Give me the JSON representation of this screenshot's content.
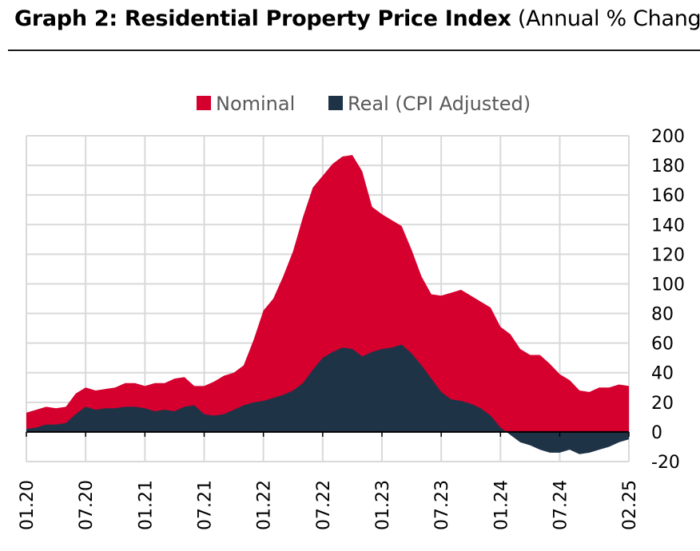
{
  "chart_data": {
    "type": "area",
    "title_bold": "Graph 2: Residential Property Price Index",
    "title_normal": "(Annual % Change)",
    "xlabel": "",
    "ylabel": "",
    "ylim": [
      -20,
      200
    ],
    "yticks": [
      200,
      180,
      160,
      140,
      120,
      100,
      80,
      60,
      40,
      20,
      0,
      -20
    ],
    "xtick_labels": [
      "01.20",
      "07.20",
      "01.21",
      "07.21",
      "01.22",
      "07.22",
      "01.23",
      "07.23",
      "01.24",
      "07.24",
      "02.25"
    ],
    "xtick_index": [
      0,
      6,
      12,
      18,
      24,
      30,
      36,
      42,
      48,
      54,
      61
    ],
    "legend_position": "top-center",
    "grid": true,
    "colors": {
      "nominal": "#d5002e",
      "real": "#1f3347",
      "grid": "#d9d9d9",
      "axis": "#000000"
    },
    "series": [
      {
        "name": "Nominal",
        "values": [
          13,
          15,
          17,
          16,
          17,
          26,
          30,
          28,
          29,
          30,
          33,
          33,
          31,
          33,
          33,
          36,
          37,
          31,
          31,
          34,
          38,
          40,
          45,
          62,
          82,
          90,
          105,
          122,
          145,
          165,
          173,
          181,
          186,
          187,
          176,
          152,
          147,
          143,
          139,
          123,
          105,
          93,
          92,
          94,
          96,
          92,
          88,
          84,
          71,
          66,
          56,
          52,
          52,
          46,
          39,
          35,
          28,
          27,
          30,
          30,
          32,
          31
        ]
      },
      {
        "name": "Real (CPI Adjusted)",
        "values": [
          2,
          3,
          5,
          5,
          6,
          12,
          17,
          15,
          16,
          16,
          17,
          17,
          16,
          14,
          15,
          14,
          17,
          18,
          12,
          11,
          12,
          15,
          18,
          20,
          21,
          23,
          25,
          28,
          33,
          42,
          50,
          54,
          57,
          56,
          51,
          54,
          56,
          57,
          59,
          53,
          45,
          36,
          27,
          22,
          21,
          19,
          16,
          11,
          3,
          -2,
          -7,
          -9,
          -12,
          -14,
          -14,
          -12,
          -15,
          -14,
          -12,
          -10,
          -7,
          -5
        ]
      }
    ]
  }
}
